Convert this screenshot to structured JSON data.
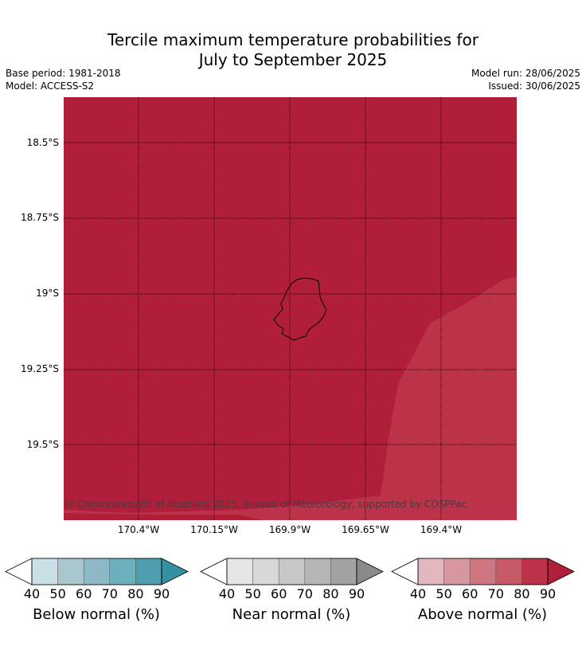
{
  "title_line1": "Tercile maximum temperature probabilities for",
  "title_line2": "July to September 2025",
  "base_period": "Base period: 1981-2018",
  "model": "Model: ACCESS-S2",
  "model_run": "Model run: 28/06/2025",
  "issued": "Issued: 30/06/2025",
  "lat_labels": [
    "18.5°S",
    "18.75°S",
    "19°S",
    "19.25°S",
    "19.5°S"
  ],
  "lon_labels": [
    "170.4°W",
    "170.15°W",
    "169.9°W",
    "169.65°W",
    "169.4°W"
  ],
  "copyright": "© Commonwealth of Australia 2025, Bureau of Meteorology, supported by COSPPac",
  "colors": {
    "map_main": "#b11e39",
    "map_lighter": "#bb3249",
    "coast": "#000000"
  },
  "colorbars": [
    {
      "label": "Below normal (%)",
      "ticks": [
        "40",
        "50",
        "60",
        "70",
        "80",
        "90"
      ],
      "colors": [
        "#c8e0e6",
        "#a9c8cd",
        "#8db9c4",
        "#6eafbd",
        "#4d9fb0",
        "#3490a2"
      ]
    },
    {
      "label": "Near normal (%)",
      "ticks": [
        "40",
        "50",
        "60",
        "70",
        "80",
        "90"
      ],
      "colors": [
        "#e6e6e6",
        "#d8d8d8",
        "#c8c8c8",
        "#b6b6b6",
        "#a2a2a2",
        "#8a8a8a"
      ]
    },
    {
      "label": "Above normal (%)",
      "ticks": [
        "40",
        "50",
        "60",
        "70",
        "80",
        "90"
      ],
      "colors": [
        "#e2b8be",
        "#d7979f",
        "#cf7680",
        "#c75a67",
        "#bb3249",
        "#b11e39"
      ]
    }
  ]
}
